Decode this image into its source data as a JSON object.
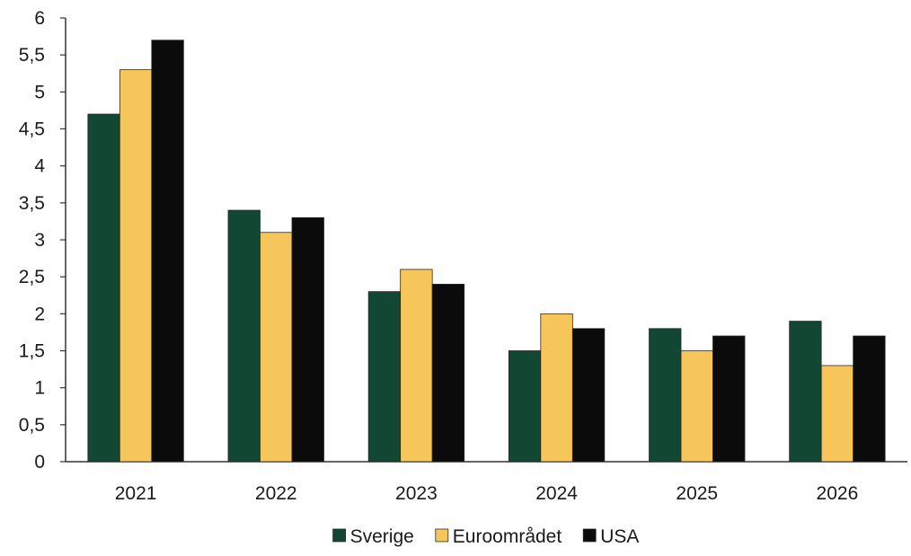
{
  "chart_data": {
    "type": "bar",
    "title": "",
    "xlabel": "",
    "ylabel": "",
    "categories": [
      "2021",
      "2022",
      "2023",
      "2024",
      "2025",
      "2026"
    ],
    "ylim": [
      0,
      6
    ],
    "yticks": [
      "0",
      "0,5",
      "1",
      "1,5",
      "2",
      "2,5",
      "3",
      "3,5",
      "4",
      "4,5",
      "5",
      "5,5",
      "6"
    ],
    "grid": false,
    "legend_position": "bottom",
    "series": [
      {
        "name": "Sverige",
        "color": "#124734",
        "values": [
          4.7,
          3.4,
          2.3,
          1.5,
          1.8,
          1.9
        ]
      },
      {
        "name": "Euroområdet",
        "color": "#F6C65B",
        "values": [
          5.3,
          3.1,
          2.6,
          2.0,
          1.5,
          1.3
        ]
      },
      {
        "name": "USA",
        "color": "#0B0B0B",
        "values": [
          5.7,
          3.3,
          2.4,
          1.8,
          1.7,
          1.7
        ]
      }
    ]
  }
}
